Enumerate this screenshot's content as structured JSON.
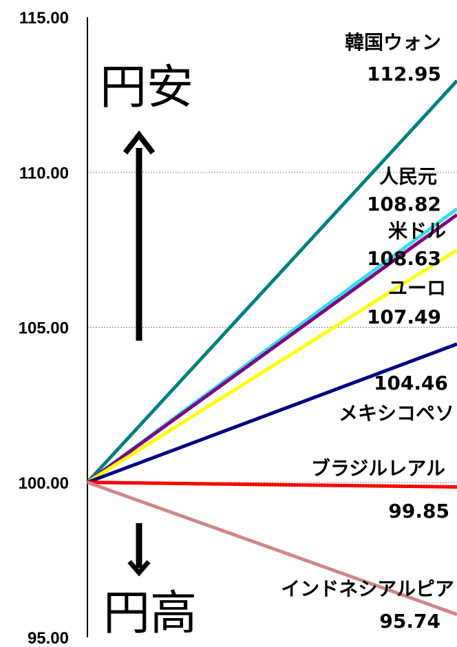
{
  "chart_data": {
    "type": "line",
    "ylim": [
      95,
      115
    ],
    "y_ticks": [
      "115.00",
      "110.00",
      "105.00",
      "100.00",
      "95.00"
    ],
    "grid": "horizontal dotted",
    "x": [
      "start",
      "end"
    ],
    "series": [
      {
        "name": "韓国ウォン",
        "values": [
          100,
          112.95
        ],
        "value_label": "112.95",
        "color": "#008080"
      },
      {
        "name": "人民元",
        "values": [
          100,
          108.82
        ],
        "value_label": "108.82",
        "color": "#33DDEE"
      },
      {
        "name": "米ドル",
        "values": [
          100,
          108.63
        ],
        "value_label": "108.63",
        "color": "#800080"
      },
      {
        "name": "ユーロ",
        "values": [
          100,
          107.49
        ],
        "value_label": "107.49",
        "color": "#FFFF00"
      },
      {
        "name": "メキシコペソ",
        "values": [
          100,
          104.46
        ],
        "value_label": "104.46",
        "color": "#000080"
      },
      {
        "name": "ブラジルレアル",
        "values": [
          100,
          99.85
        ],
        "value_label": "99.85",
        "color": "#FF0000"
      },
      {
        "name": "インドネシアルピア",
        "values": [
          100,
          95.74
        ],
        "value_label": "95.74",
        "color": "#CC8888"
      }
    ],
    "annotations": {
      "up_text": "円安",
      "down_text": "円高"
    }
  }
}
